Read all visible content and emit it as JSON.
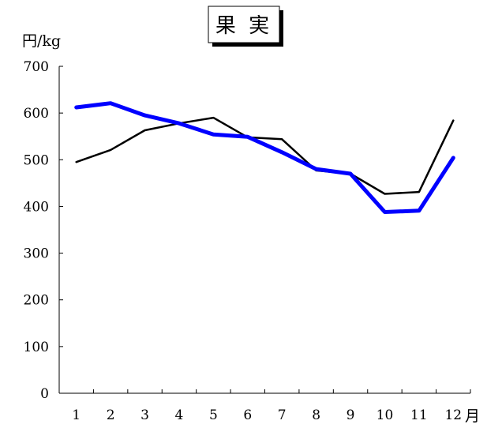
{
  "chart_data": {
    "type": "line",
    "title": "果 実",
    "ylabel": "円/kg",
    "xlabel": "月",
    "categories": [
      "1",
      "2",
      "3",
      "4",
      "5",
      "6",
      "7",
      "8",
      "9",
      "10",
      "11",
      "12"
    ],
    "ylim": [
      0,
      700
    ],
    "yticks": [
      "0",
      "100",
      "200",
      "300",
      "400",
      "500",
      "600",
      "700"
    ],
    "grid": false,
    "series": [
      {
        "values": [
          495,
          521,
          563,
          578,
          590,
          548,
          544,
          477,
          470,
          427,
          431,
          584
        ],
        "color": "#000000"
      },
      {
        "values": [
          612,
          621,
          595,
          578,
          554,
          549,
          516,
          480,
          470,
          388,
          391,
          504
        ],
        "color": "#0000ff"
      }
    ]
  }
}
